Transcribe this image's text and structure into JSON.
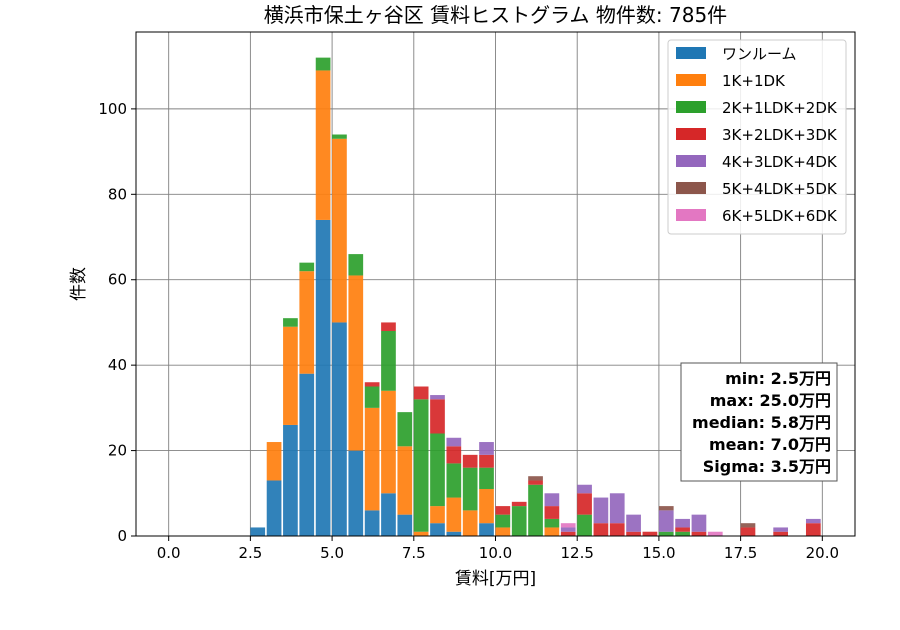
{
  "chart_data": {
    "type": "bar",
    "stacked": true,
    "title": "横浜市保土ヶ谷区 賃料ヒストグラム  物件数: 785件",
    "xlabel": "賃料[万円]",
    "ylabel": "件数",
    "xlim": [
      -1,
      21
    ],
    "ylim": [
      0,
      118
    ],
    "grid": true,
    "legend_position": "top-right",
    "bin_width": 0.5,
    "x_ticks": [
      0,
      2.5,
      5,
      7.5,
      10,
      12.5,
      15,
      17.5,
      20
    ],
    "x_tick_labels": [
      "0.0",
      "2.5",
      "5.0",
      "7.5",
      "10.0",
      "12.5",
      "15.0",
      "17.5",
      "20.0"
    ],
    "y_ticks": [
      0,
      20,
      40,
      60,
      80,
      100
    ],
    "y_tick_labels": [
      "0",
      "20",
      "40",
      "60",
      "80",
      "100"
    ],
    "x": [
      2.5,
      3.0,
      3.5,
      4.0,
      4.5,
      5.0,
      5.5,
      6.0,
      6.5,
      7.0,
      7.5,
      8.0,
      8.5,
      9.0,
      9.5,
      10.0,
      10.5,
      11.0,
      11.5,
      12.0,
      12.5,
      13.0,
      13.5,
      14.0,
      14.5,
      15.0,
      15.5,
      16.0,
      16.5,
      17.0,
      17.5,
      18.0,
      18.5,
      19.0,
      19.5
    ],
    "series": [
      {
        "name": "ワンルーム",
        "color": "#1f77b4",
        "values": [
          2,
          13,
          26,
          38,
          74,
          50,
          20,
          6,
          10,
          5,
          0,
          3,
          1,
          0,
          3,
          0,
          0,
          0,
          0,
          0,
          0,
          0,
          0,
          0,
          0,
          0,
          0,
          0,
          0,
          0,
          0,
          0,
          0,
          0,
          0
        ]
      },
      {
        "name": "1K+1DK",
        "color": "#ff7f0e",
        "values": [
          0,
          9,
          23,
          24,
          35,
          43,
          41,
          24,
          24,
          16,
          1,
          4,
          8,
          6,
          8,
          2,
          0,
          0,
          2,
          0,
          0,
          0,
          0,
          0,
          0,
          0,
          0,
          0,
          0,
          0,
          0,
          0,
          0,
          0,
          0
        ]
      },
      {
        "name": "2K+1LDK+2DK",
        "color": "#2ca02c",
        "values": [
          0,
          0,
          2,
          2,
          3,
          1,
          5,
          5,
          14,
          8,
          31,
          17,
          8,
          10,
          5,
          3,
          7,
          12,
          2,
          0,
          5,
          0,
          0,
          0,
          0,
          1,
          1,
          0,
          0,
          0,
          0,
          0,
          0,
          0,
          0
        ]
      },
      {
        "name": "3K+2LDK+3DK",
        "color": "#d62728",
        "values": [
          0,
          0,
          0,
          0,
          0,
          0,
          0,
          1,
          2,
          0,
          3,
          8,
          4,
          3,
          3,
          2,
          1,
          1,
          3,
          1,
          5,
          3,
          3,
          1,
          1,
          0,
          1,
          1,
          0,
          0,
          2,
          0,
          1,
          0,
          3
        ]
      },
      {
        "name": "4K+3LDK+4DK",
        "color": "#9467bd",
        "values": [
          0,
          0,
          0,
          0,
          0,
          0,
          0,
          0,
          0,
          0,
          0,
          1,
          2,
          0,
          3,
          0,
          0,
          0,
          3,
          1,
          2,
          6,
          7,
          4,
          0,
          5,
          2,
          4,
          0,
          0,
          0,
          0,
          1,
          0,
          1
        ]
      },
      {
        "name": "5K+4LDK+5DK",
        "color": "#8c564b",
        "values": [
          0,
          0,
          0,
          0,
          0,
          0,
          0,
          0,
          0,
          0,
          0,
          0,
          0,
          0,
          0,
          0,
          0,
          1,
          0,
          0,
          0,
          0,
          0,
          0,
          0,
          1,
          0,
          0,
          0,
          0,
          1,
          0,
          0,
          0,
          0
        ]
      },
      {
        "name": "6K+5LDK+6DK",
        "color": "#e377c2",
        "values": [
          0,
          0,
          0,
          0,
          0,
          0,
          0,
          0,
          0,
          0,
          0,
          0,
          0,
          0,
          0,
          0,
          0,
          0,
          0,
          1,
          0,
          0,
          0,
          0,
          0,
          0,
          0,
          0,
          1,
          0,
          0,
          0,
          0,
          0,
          0
        ]
      }
    ],
    "stats_box": [
      "min: 2.5万円",
      "max: 25.0万円",
      "median: 5.8万円",
      "mean: 7.0万円",
      "Sigma: 3.5万円"
    ]
  }
}
